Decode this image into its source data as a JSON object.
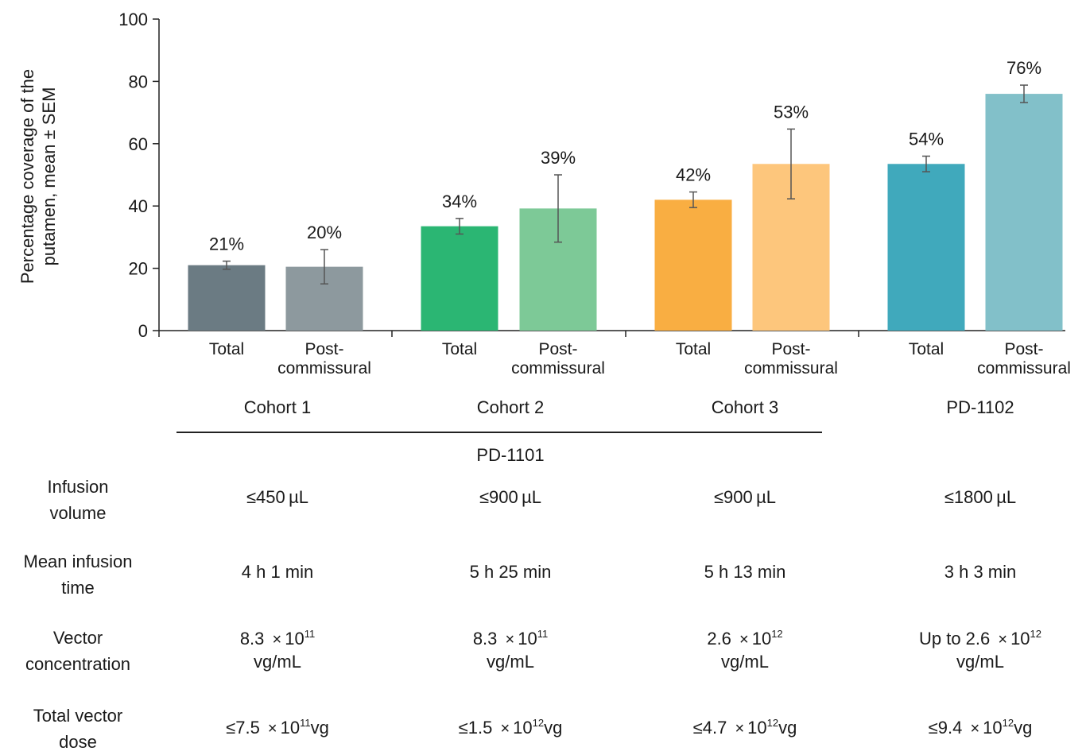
{
  "chart_data": {
    "type": "bar",
    "ylabel_lines": [
      "Percentage coverage of the",
      "putamen, mean ± SEM"
    ],
    "ylim": [
      0,
      100
    ],
    "yticks": [
      0,
      20,
      40,
      60,
      80,
      100
    ],
    "groups": [
      "Cohort 1",
      "Cohort 2",
      "Cohort 3",
      "PD-1102"
    ],
    "bars": [
      {
        "group": "Cohort 1",
        "label": [
          "Total"
        ],
        "value": 21,
        "err": 1.3,
        "value_label": "21%",
        "color": "#6b7b83"
      },
      {
        "group": "Cohort 1",
        "label": [
          "Post-",
          "commissural"
        ],
        "value": 20.5,
        "err": 5.5,
        "value_label": "20%",
        "color": "#8d999e"
      },
      {
        "group": "Cohort 2",
        "label": [
          "Total"
        ],
        "value": 33.5,
        "err": 2.5,
        "value_label": "34%",
        "color": "#2bb673"
      },
      {
        "group": "Cohort 2",
        "label": [
          "Post-",
          "commissural"
        ],
        "value": 39.2,
        "err": 10.8,
        "value_label": "39%",
        "color": "#7dc997"
      },
      {
        "group": "Cohort 3",
        "label": [
          "Total"
        ],
        "value": 42,
        "err": 2.5,
        "value_label": "42%",
        "color": "#f9ae42"
      },
      {
        "group": "Cohort 3",
        "label": [
          "Post-",
          "commissural"
        ],
        "value": 53.5,
        "err": 11.2,
        "value_label": "53%",
        "color": "#fdc67c"
      },
      {
        "group": "PD-1102",
        "label": [
          "Total"
        ],
        "value": 53.5,
        "err": 2.5,
        "value_label": "54%",
        "color": "#40a9bc"
      },
      {
        "group": "PD-1102",
        "label": [
          "Post-",
          "commissural"
        ],
        "value": 76,
        "err": 2.8,
        "value_label": "76%",
        "color": "#82c0c9"
      }
    ],
    "grid": false
  },
  "study_label": "PD-1101",
  "table": {
    "rows": [
      {
        "label": [
          "Infusion",
          "volume"
        ],
        "cells": [
          {
            "lines": [
              "≤450 µL"
            ]
          },
          {
            "lines": [
              "≤900 µL"
            ]
          },
          {
            "lines": [
              "≤900 µL"
            ]
          },
          {
            "lines": [
              "≤1800 µL"
            ]
          }
        ]
      },
      {
        "label": [
          "Mean infusion",
          "time"
        ],
        "cells": [
          {
            "lines": [
              "4 h 1 min"
            ]
          },
          {
            "lines": [
              "5 h 25 min"
            ]
          },
          {
            "lines": [
              "5 h 13 min"
            ]
          },
          {
            "lines": [
              "3 h 3 min"
            ]
          }
        ]
      },
      {
        "label": [
          "Vector",
          "concentration"
        ],
        "cells": [
          {
            "prefix": "8.3",
            "exp": "11",
            "suffix": "",
            "line2": "vg/mL"
          },
          {
            "prefix": "8.3",
            "exp": "11",
            "suffix": "",
            "line2": "vg/mL"
          },
          {
            "prefix": "2.6",
            "exp": "12",
            "suffix": "",
            "line2": "vg/mL"
          },
          {
            "prefix": "Up to 2.6",
            "exp": "12",
            "suffix": "",
            "line2": "vg/mL"
          }
        ]
      },
      {
        "label": [
          "Total vector",
          "dose"
        ],
        "cells": [
          {
            "prefix": "≤7.5",
            "exp": "11",
            "suffix": "vg"
          },
          {
            "prefix": "≤1.5",
            "exp": "12",
            "suffix": "vg"
          },
          {
            "prefix": "≤4.7",
            "exp": "12",
            "suffix": "vg"
          },
          {
            "prefix": "≤9.4",
            "exp": "12",
            "suffix": "vg"
          }
        ]
      }
    ],
    "times_symbol": "×",
    "base": "10"
  }
}
